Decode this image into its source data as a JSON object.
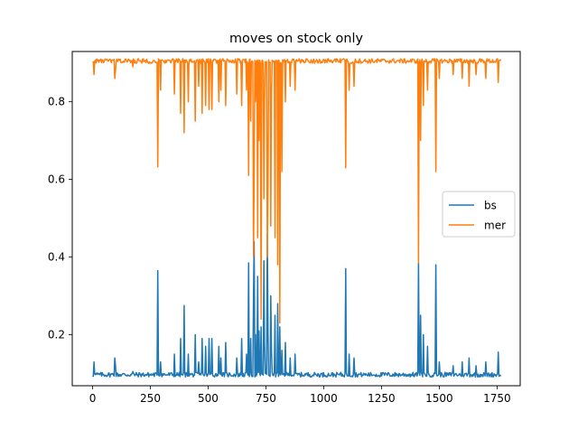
{
  "figure": {
    "background": "#ffffff"
  },
  "chart_data": {
    "type": "line",
    "title": "moves on stock only",
    "xlabel": "",
    "ylabel": "",
    "xlim": [
      -88,
      1850
    ],
    "ylim": [
      0.0685,
      0.9295
    ],
    "xticks": [
      0,
      250,
      500,
      750,
      1000,
      1250,
      1500,
      1750
    ],
    "xtick_labels": [
      "0",
      "250",
      "500",
      "750",
      "1000",
      "1250",
      "1500",
      "1750"
    ],
    "yticks": [
      0.2,
      0.4,
      0.6,
      0.8
    ],
    "ytick_labels": [
      "0.2",
      "0.4",
      "0.6",
      "0.8"
    ],
    "grid": false,
    "legend": {
      "position": "center right",
      "entries": [
        "bs",
        "mer"
      ]
    },
    "series": [
      {
        "name": "bs",
        "color": "#1f77b4",
        "baseline": 0.097,
        "noise": 0.006,
        "x_start": 0,
        "x_end": 1765,
        "spikes": [
          [
            5,
            0.13
          ],
          [
            95,
            0.14
          ],
          [
            100,
            0.12
          ],
          [
            175,
            0.105
          ],
          [
            283,
            0.365
          ],
          [
            295,
            0.13
          ],
          [
            355,
            0.15
          ],
          [
            380,
            0.19
          ],
          [
            395,
            0.275
          ],
          [
            415,
            0.15
          ],
          [
            445,
            0.2
          ],
          [
            460,
            0.13
          ],
          [
            475,
            0.19
          ],
          [
            490,
            0.17
          ],
          [
            505,
            0.19
          ],
          [
            515,
            0.19
          ],
          [
            545,
            0.17
          ],
          [
            555,
            0.14
          ],
          [
            575,
            0.18
          ],
          [
            625,
            0.14
          ],
          [
            645,
            0.19
          ],
          [
            665,
            0.15
          ],
          [
            675,
            0.385
          ],
          [
            685,
            0.19
          ],
          [
            695,
            0.3
          ],
          [
            700,
            0.44
          ],
          [
            705,
            0.2
          ],
          [
            715,
            0.35
          ],
          [
            720,
            0.21
          ],
          [
            730,
            0.22
          ],
          [
            740,
            0.39
          ],
          [
            745,
            0.18
          ],
          [
            755,
            0.46
          ],
          [
            760,
            0.2
          ],
          [
            770,
            0.3
          ],
          [
            775,
            0.16
          ],
          [
            790,
            0.25
          ],
          [
            800,
            0.28
          ],
          [
            810,
            0.22
          ],
          [
            820,
            0.16
          ],
          [
            835,
            0.18
          ],
          [
            855,
            0.14
          ],
          [
            875,
            0.15
          ],
          [
            1095,
            0.37
          ],
          [
            1110,
            0.15
          ],
          [
            1130,
            0.14
          ],
          [
            1410,
            0.385
          ],
          [
            1420,
            0.25
          ],
          [
            1430,
            0.2
          ],
          [
            1450,
            0.17
          ],
          [
            1485,
            0.38
          ],
          [
            1500,
            0.13
          ],
          [
            1560,
            0.12
          ],
          [
            1600,
            0.13
          ],
          [
            1630,
            0.14
          ],
          [
            1660,
            0.12
          ],
          [
            1700,
            0.13
          ],
          [
            1755,
            0.155
          ]
        ],
        "end_value": 0.097
      },
      {
        "name": "mer",
        "color": "#ff7f0e",
        "baseline": 0.905,
        "noise": 0.006,
        "x_start": 0,
        "x_end": 1765,
        "spikes": [
          [
            5,
            0.87
          ],
          [
            95,
            0.86
          ],
          [
            100,
            0.88
          ],
          [
            175,
            0.89
          ],
          [
            283,
            0.632
          ],
          [
            295,
            0.83
          ],
          [
            355,
            0.82
          ],
          [
            380,
            0.77
          ],
          [
            395,
            0.72
          ],
          [
            415,
            0.8
          ],
          [
            445,
            0.75
          ],
          [
            460,
            0.84
          ],
          [
            475,
            0.77
          ],
          [
            490,
            0.79
          ],
          [
            505,
            0.78
          ],
          [
            515,
            0.78
          ],
          [
            545,
            0.8
          ],
          [
            555,
            0.83
          ],
          [
            575,
            0.79
          ],
          [
            625,
            0.82
          ],
          [
            645,
            0.79
          ],
          [
            665,
            0.83
          ],
          [
            675,
            0.61
          ],
          [
            685,
            0.75
          ],
          [
            695,
            0.4
          ],
          [
            700,
            0.6
          ],
          [
            705,
            0.8
          ],
          [
            715,
            0.45
          ],
          [
            720,
            0.7
          ],
          [
            730,
            0.24
          ],
          [
            740,
            0.55
          ],
          [
            745,
            0.8
          ],
          [
            755,
            0.4
          ],
          [
            760,
            0.6
          ],
          [
            770,
            0.48
          ],
          [
            775,
            0.82
          ],
          [
            790,
            0.45
          ],
          [
            800,
            0.38
          ],
          [
            810,
            0.23
          ],
          [
            820,
            0.62
          ],
          [
            835,
            0.8
          ],
          [
            855,
            0.84
          ],
          [
            875,
            0.83
          ],
          [
            1095,
            0.63
          ],
          [
            1110,
            0.83
          ],
          [
            1130,
            0.84
          ],
          [
            1410,
            0.385
          ],
          [
            1420,
            0.7
          ],
          [
            1430,
            0.79
          ],
          [
            1450,
            0.83
          ],
          [
            1485,
            0.62
          ],
          [
            1500,
            0.86
          ],
          [
            1560,
            0.87
          ],
          [
            1600,
            0.86
          ],
          [
            1630,
            0.84
          ],
          [
            1660,
            0.87
          ],
          [
            1700,
            0.86
          ],
          [
            1755,
            0.85
          ]
        ],
        "end_value": 0.905
      }
    ]
  }
}
